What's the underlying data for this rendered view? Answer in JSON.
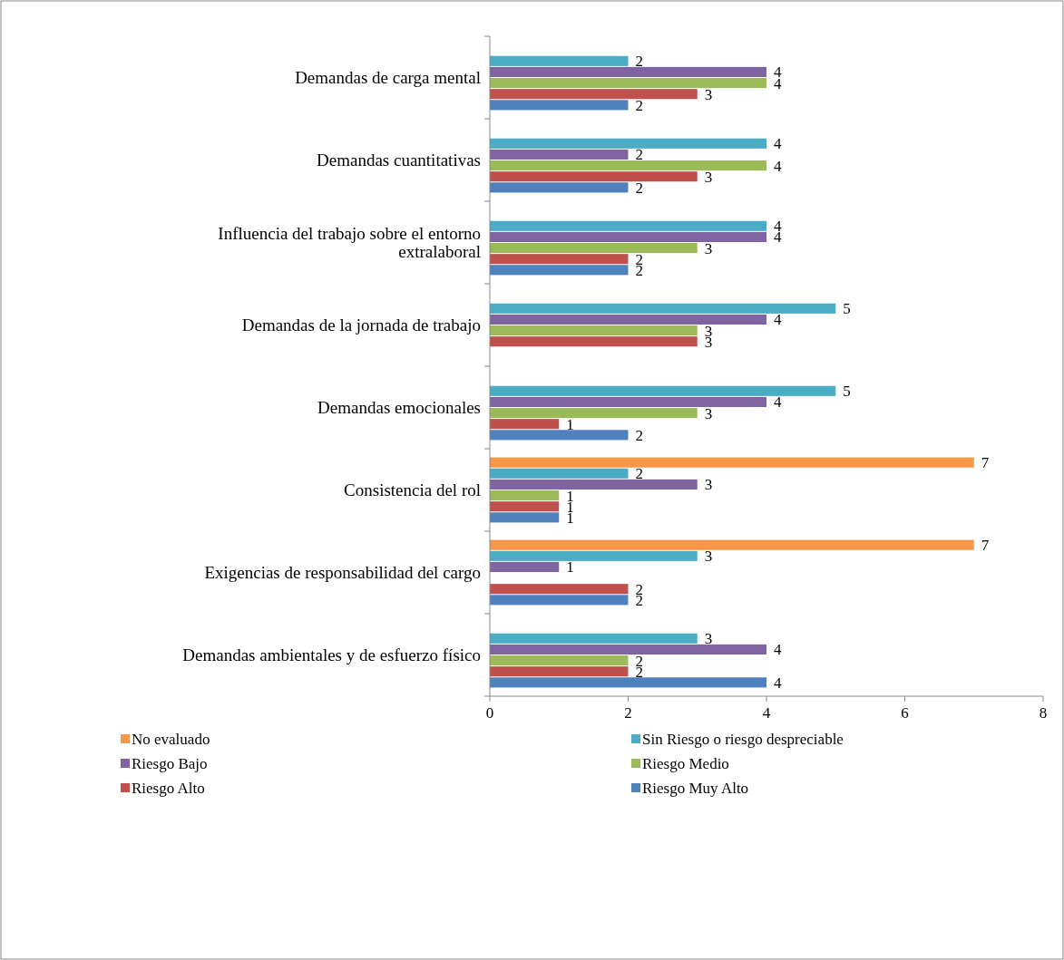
{
  "chart_data": {
    "type": "bar",
    "orientation": "horizontal",
    "categories": [
      "Demandas de carga mental",
      "Demandas cuantitativas",
      "Influencia del trabajo sobre el entorno extralaboral",
      "Demandas de la jornada de trabajo",
      "Demandas emocionales",
      "Consistencia del rol",
      "Exigencias de responsabilidad del cargo",
      "Demandas ambientales y de esfuerzo físico"
    ],
    "series": [
      {
        "name": "No evaluado",
        "color": "#f79646",
        "values": [
          null,
          null,
          null,
          null,
          null,
          7,
          7,
          null
        ]
      },
      {
        "name": "Sin Riesgo o riesgo despreciable",
        "color": "#4bacc6",
        "values": [
          2,
          4,
          4,
          5,
          5,
          2,
          3,
          3
        ]
      },
      {
        "name": "Riesgo Bajo",
        "color": "#8064a2",
        "values": [
          4,
          2,
          4,
          4,
          4,
          3,
          1,
          4
        ]
      },
      {
        "name": "Riesgo Medio",
        "color": "#9bbb59",
        "values": [
          4,
          4,
          3,
          3,
          3,
          1,
          null,
          2
        ]
      },
      {
        "name": "Riesgo Alto",
        "color": "#c0504d",
        "values": [
          3,
          3,
          2,
          3,
          1,
          1,
          2,
          2
        ]
      },
      {
        "name": "Riesgo Muy Alto",
        "color": "#4f81bd",
        "values": [
          2,
          2,
          2,
          null,
          2,
          1,
          2,
          4
        ]
      }
    ],
    "xlim": [
      0,
      8
    ],
    "xticks": [
      0,
      2,
      4,
      6,
      8
    ],
    "data_labels": true,
    "grid": false,
    "legend": "bottom"
  }
}
